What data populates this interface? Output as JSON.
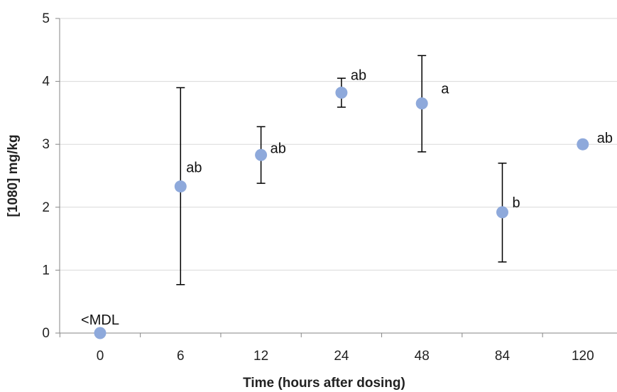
{
  "chart_data": {
    "type": "scatter",
    "title": "",
    "xlabel": "Time (hours after dosing)",
    "ylabel": "[1080] mg/kg",
    "categories": [
      "0",
      "6",
      "12",
      "24",
      "48",
      "84",
      "120"
    ],
    "ylim": [
      0,
      5
    ],
    "yticks": [
      0,
      1,
      2,
      3,
      4,
      5
    ],
    "grid": "horizontal",
    "legend": "none",
    "marker_color": "#8EA9DB",
    "points": [
      {
        "x": "0",
        "y": 0,
        "err_low": null,
        "err_high": null,
        "label": "<MDL"
      },
      {
        "x": "6",
        "y": 2.33,
        "err_low": 0.77,
        "err_high": 3.9,
        "label": "ab"
      },
      {
        "x": "12",
        "y": 2.83,
        "err_low": 2.38,
        "err_high": 3.28,
        "label": "ab"
      },
      {
        "x": "24",
        "y": 3.82,
        "err_low": 3.59,
        "err_high": 4.05,
        "label": "ab"
      },
      {
        "x": "48",
        "y": 3.65,
        "err_low": 2.88,
        "err_high": 4.41,
        "label": "a"
      },
      {
        "x": "84",
        "y": 1.92,
        "err_low": 1.13,
        "err_high": 2.7,
        "label": "b"
      },
      {
        "x": "120",
        "y": 3.0,
        "err_low": null,
        "err_high": null,
        "label": "ab"
      }
    ]
  }
}
